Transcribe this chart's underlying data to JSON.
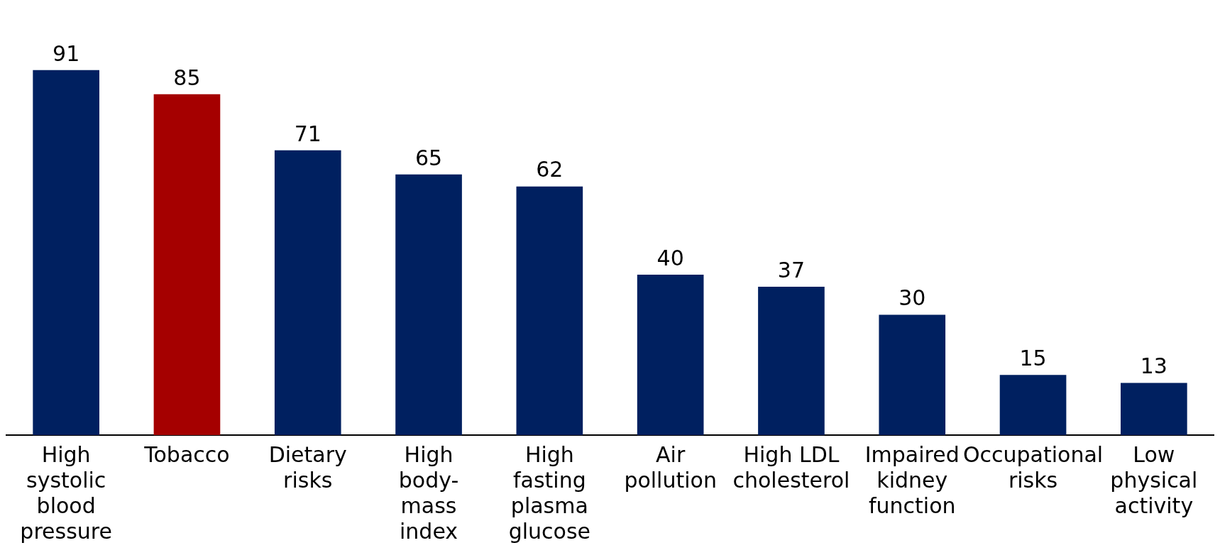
{
  "chart_data": {
    "type": "bar",
    "categories": [
      "High systolic blood pressure",
      "Tobacco",
      "Dietary risks",
      "High body-mass index",
      "High fasting plasma glucose",
      "Air pollution",
      "High LDL cholesterol",
      "Impaired kidney function",
      "Occupational risks",
      "Low physical activity"
    ],
    "values": [
      91,
      85,
      71,
      65,
      62,
      40,
      37,
      30,
      15,
      13
    ],
    "colors": [
      "#002060",
      "#a50000",
      "#002060",
      "#002060",
      "#002060",
      "#002060",
      "#002060",
      "#002060",
      "#002060",
      "#002060"
    ],
    "data_labels": true,
    "grid": false,
    "legend": false,
    "tick_labels": "x"
  }
}
